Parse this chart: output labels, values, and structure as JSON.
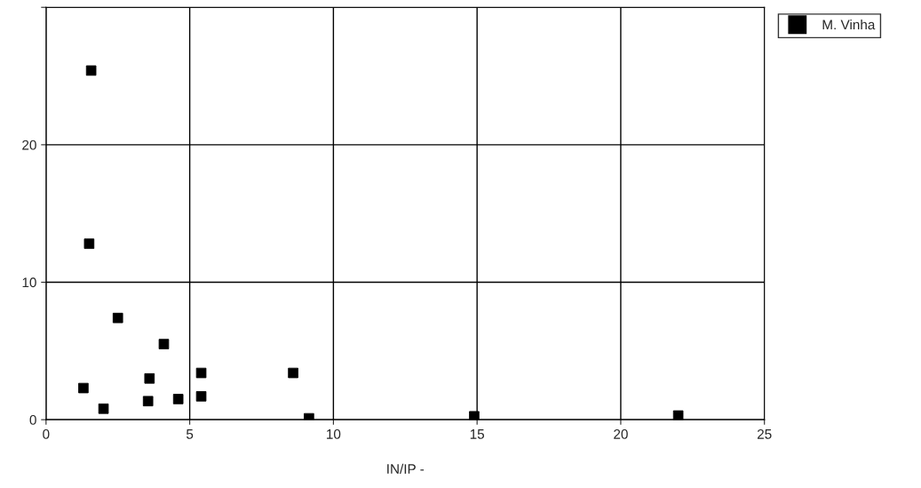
{
  "chart_data": {
    "type": "scatter",
    "xlabel": "IN/IP -",
    "series": [
      {
        "name": "M. Vinha",
        "color": "#000000",
        "x": [
          1.57,
          1.5,
          2.5,
          4.1,
          1.3,
          2.0,
          3.55,
          3.6,
          4.6,
          5.4,
          5.4,
          8.6,
          9.15,
          14.9,
          22.0
        ],
        "values": [
          25.4,
          12.8,
          7.4,
          5.5,
          2.3,
          0.8,
          1.35,
          3.0,
          1.5,
          3.4,
          1.7,
          3.4,
          0.1,
          0.25,
          0.3
        ]
      }
    ],
    "xlim": [
      0,
      25
    ],
    "xticks": [
      0,
      5,
      10,
      15,
      20,
      25
    ],
    "ylim": [
      0,
      30
    ],
    "yticks": [
      0,
      10,
      20,
      {
        "value": 30,
        "label": null
      }
    ],
    "grid": true,
    "legend": "top right",
    "marker": "square"
  }
}
